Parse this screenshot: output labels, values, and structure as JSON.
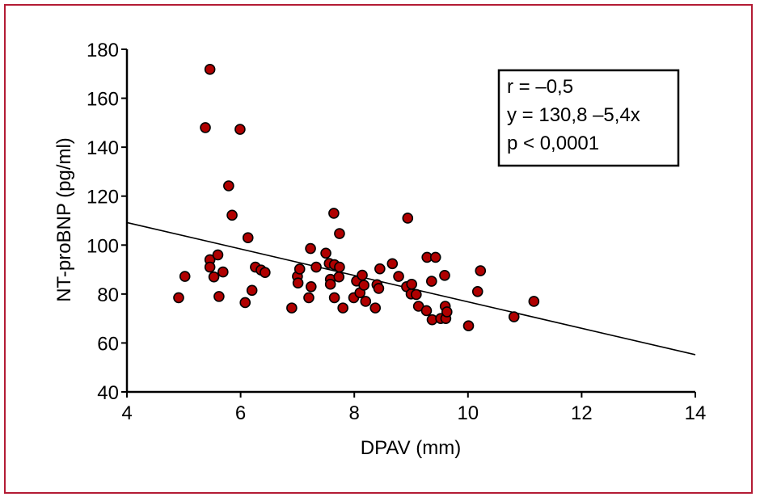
{
  "chart_data": {
    "type": "scatter",
    "xlabel": "DPAV (mm)",
    "ylabel": "NT-proBNP (pg/ml)",
    "xlim": [
      4,
      14
    ],
    "ylim": [
      40,
      180
    ],
    "xticks": [
      4,
      6,
      8,
      10,
      12,
      14
    ],
    "yticks": [
      40,
      60,
      80,
      100,
      120,
      140,
      160,
      180
    ],
    "xtick_labels": [
      "4",
      "6",
      "8",
      "10",
      "12",
      "14"
    ],
    "ytick_labels": [
      "40",
      "60",
      "80",
      "100",
      "120",
      "140",
      "160",
      "180"
    ],
    "marker_fill": "#b00000",
    "frame_color": "#b31b34",
    "grid": false,
    "regression": {
      "intercept": 130.8,
      "slope": -5.4
    },
    "annotation": {
      "line1": "r = –0,5",
      "line2": "y = 130,8 –5,4x",
      "line3": "p < 0,0001"
    },
    "points": [
      [
        4.91,
        78.5
      ],
      [
        5.02,
        87.2
      ],
      [
        5.38,
        148.0
      ],
      [
        5.46,
        171.8
      ],
      [
        5.46,
        94.0
      ],
      [
        5.46,
        91.0
      ],
      [
        5.53,
        87.0
      ],
      [
        5.6,
        96.0
      ],
      [
        5.62,
        79.0
      ],
      [
        5.69,
        89.0
      ],
      [
        5.79,
        124.2
      ],
      [
        5.85,
        112.2
      ],
      [
        5.99,
        147.3
      ],
      [
        6.08,
        76.5
      ],
      [
        6.13,
        103.0
      ],
      [
        6.2,
        81.5
      ],
      [
        6.26,
        91.0
      ],
      [
        6.36,
        89.8
      ],
      [
        6.43,
        88.8
      ],
      [
        6.9,
        74.3
      ],
      [
        7.0,
        87.2
      ],
      [
        7.01,
        84.5
      ],
      [
        7.04,
        90.2
      ],
      [
        7.2,
        78.5
      ],
      [
        7.23,
        98.6
      ],
      [
        7.24,
        83.0
      ],
      [
        7.33,
        91.0
      ],
      [
        7.5,
        96.7
      ],
      [
        7.56,
        92.5
      ],
      [
        7.58,
        86.0
      ],
      [
        7.58,
        84.0
      ],
      [
        7.64,
        113.0
      ],
      [
        7.65,
        92.0
      ],
      [
        7.65,
        78.5
      ],
      [
        7.74,
        91.0
      ],
      [
        7.74,
        104.7
      ],
      [
        7.73,
        87.0
      ],
      [
        7.8,
        74.3
      ],
      [
        7.99,
        78.5
      ],
      [
        8.04,
        85.3
      ],
      [
        8.1,
        80.5
      ],
      [
        8.14,
        87.7
      ],
      [
        8.17,
        83.6
      ],
      [
        8.2,
        77.0
      ],
      [
        8.37,
        74.3
      ],
      [
        8.4,
        83.8
      ],
      [
        8.43,
        82.3
      ],
      [
        8.45,
        90.3
      ],
      [
        8.67,
        92.4
      ],
      [
        8.78,
        87.2
      ],
      [
        8.92,
        83.0
      ],
      [
        8.94,
        111.0
      ],
      [
        9.0,
        80.0
      ],
      [
        9.01,
        84.0
      ],
      [
        9.09,
        79.8
      ],
      [
        9.13,
        75.0
      ],
      [
        9.27,
        73.2
      ],
      [
        9.28,
        95.0
      ],
      [
        9.36,
        85.2
      ],
      [
        9.37,
        69.5
      ],
      [
        9.43,
        95.0
      ],
      [
        9.52,
        70.0
      ],
      [
        9.59,
        87.6
      ],
      [
        9.6,
        75.0
      ],
      [
        9.61,
        70.0
      ],
      [
        9.63,
        72.7
      ],
      [
        10.01,
        67.0
      ],
      [
        10.17,
        81.0
      ],
      [
        10.22,
        89.5
      ],
      [
        10.81,
        70.7
      ],
      [
        11.16,
        77.0
      ]
    ]
  }
}
